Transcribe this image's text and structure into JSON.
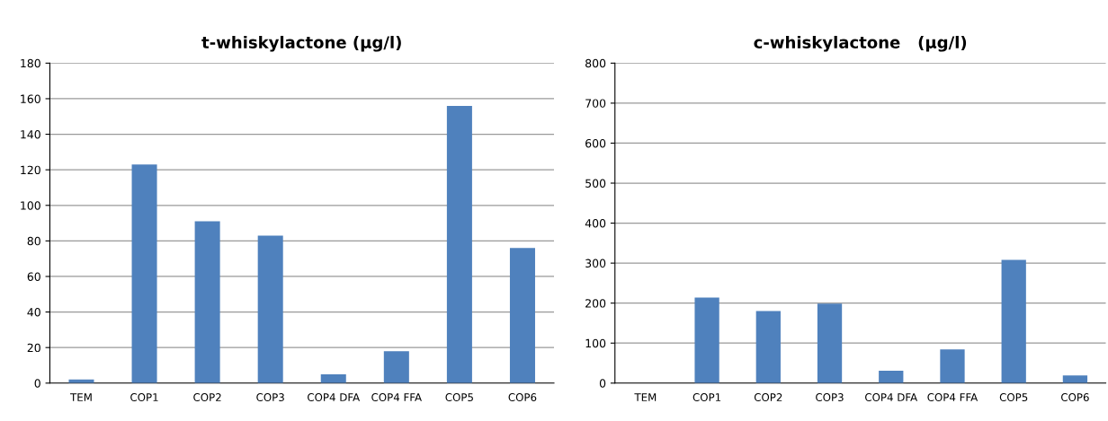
{
  "chart_data": [
    {
      "type": "bar",
      "title": "t-whiskylactone (µg/l)",
      "categories": [
        "TEM",
        "COP1",
        "COP2",
        "COP3",
        "COP4 DFA",
        "COP4 FFA",
        "COP5",
        "COP6"
      ],
      "values": [
        2,
        123,
        91,
        83,
        5,
        18,
        156,
        76
      ],
      "color": "#4f81bd",
      "ylim": [
        0,
        180
      ],
      "yticks": [
        0,
        20,
        40,
        60,
        80,
        100,
        120,
        140,
        160,
        180
      ],
      "grid": "y"
    },
    {
      "type": "bar",
      "title": "c-whiskylactone   (µg/l)",
      "categories": [
        "TEM",
        "COP1",
        "COP2",
        "COP3",
        "COP4 DFA",
        "COP4 FFA",
        "COP5",
        "COP6"
      ],
      "values": [
        null,
        214,
        180,
        199,
        31,
        84,
        308,
        19
      ],
      "color": "#4f81bd",
      "ylim": [
        0,
        800
      ],
      "yticks": [
        0,
        100,
        200,
        300,
        400,
        500,
        600,
        700,
        800
      ],
      "grid": "y"
    }
  ]
}
